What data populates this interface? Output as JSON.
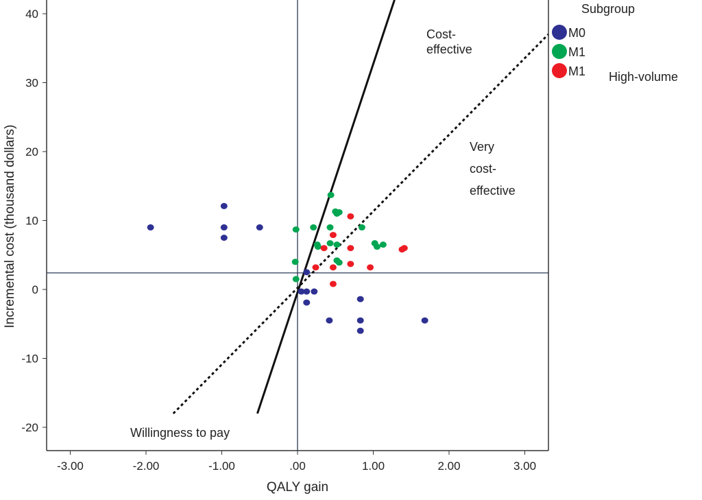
{
  "chart_data": {
    "type": "scatter",
    "title": "",
    "xlabel": "QALY gain",
    "ylabel": "Incremental cost (thousand dollars)",
    "xlim": [
      -3.3,
      3.31
    ],
    "ylim": [
      -23.5,
      42
    ],
    "x_ticks": [
      -3,
      -2,
      -1,
      0,
      1,
      2,
      3
    ],
    "x_tick_labels": [
      "-3.00",
      "-2.00",
      "-1.00",
      ".00",
      "1.00",
      "2.00",
      "3.00"
    ],
    "y_ticks": [
      40,
      30,
      20,
      10,
      0,
      -10,
      -20
    ],
    "y_tick_labels": [
      "40",
      "30",
      "20",
      "10",
      "0",
      "-10",
      "-20"
    ],
    "reference_lines": {
      "vertical_x": 0,
      "horizontal_y": 2.4
    },
    "wtp_lines": [
      {
        "style": "solid",
        "from": [
          -0.53,
          -18
        ],
        "to": [
          1.28,
          42
        ]
      },
      {
        "style": "dotted",
        "from": [
          -1.64,
          -18
        ],
        "to": [
          3.31,
          37
        ]
      }
    ],
    "legend": {
      "title": "Subgroup",
      "placement": "top-right",
      "extra_label": "High-volume"
    },
    "annotations": {
      "cost_effective": [
        "Cost-",
        "effective"
      ],
      "very_cost_effective": [
        "Very",
        "cost-",
        "effective"
      ],
      "willingness": "Willingness to pay"
    },
    "series": [
      {
        "name": "M0",
        "color": "#2e3192",
        "points": [
          [
            -1.94,
            9.0
          ],
          [
            -0.97,
            12.1
          ],
          [
            -0.97,
            9.0
          ],
          [
            -0.97,
            7.5
          ],
          [
            -0.5,
            9.0
          ],
          [
            0.12,
            2.5
          ],
          [
            0.05,
            -0.3
          ],
          [
            0.12,
            -0.3
          ],
          [
            0.22,
            -0.3
          ],
          [
            0.12,
            -1.9
          ],
          [
            0.83,
            -1.4
          ],
          [
            0.42,
            -4.5
          ],
          [
            0.83,
            -4.5
          ],
          [
            1.68,
            -4.5
          ],
          [
            0.83,
            -6.0
          ]
        ]
      },
      {
        "name": "M1",
        "color": "#00a651",
        "points": [
          [
            0.44,
            13.7
          ],
          [
            0.5,
            11.3
          ],
          [
            0.55,
            11.2
          ],
          [
            0.52,
            11.0
          ],
          [
            -0.02,
            8.7
          ],
          [
            0.21,
            9.0
          ],
          [
            0.43,
            9.0
          ],
          [
            0.85,
            9.0
          ],
          [
            0.26,
            6.5
          ],
          [
            0.27,
            6.2
          ],
          [
            0.43,
            6.7
          ],
          [
            0.52,
            6.5
          ],
          [
            1.02,
            6.7
          ],
          [
            1.05,
            6.2
          ],
          [
            1.13,
            6.5
          ],
          [
            0.52,
            4.2
          ],
          [
            0.55,
            3.9
          ],
          [
            -0.03,
            4.0
          ],
          [
            -0.02,
            1.5
          ]
        ]
      },
      {
        "name": "M1",
        "color": "#ed1c24",
        "points": [
          [
            0.7,
            10.6
          ],
          [
            0.47,
            7.9
          ],
          [
            0.35,
            6.0
          ],
          [
            0.7,
            6.0
          ],
          [
            1.41,
            6.0
          ],
          [
            1.38,
            5.8
          ],
          [
            0.24,
            3.2
          ],
          [
            0.47,
            3.2
          ],
          [
            0.7,
            3.7
          ],
          [
            0.96,
            3.2
          ],
          [
            0.47,
            0.8
          ]
        ]
      }
    ]
  }
}
